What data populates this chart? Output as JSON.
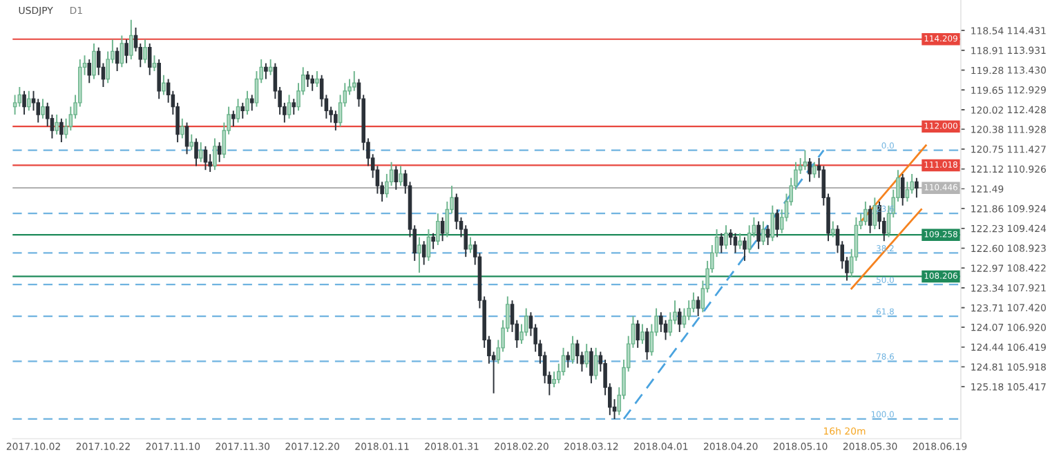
{
  "chart_data": {
    "type": "candlestick",
    "title": "USDJPY",
    "annotations": [
      "D1",
      "16h 20m",
      {
        "text": "0.0",
        "y": 111.4
      },
      {
        "text": "23.6",
        "y": 109.8
      },
      {
        "text": "38.2",
        "y": 108.8
      },
      {
        "text": "50.0",
        "y": 108.0
      },
      {
        "text": "61.8",
        "y": 107.2
      },
      {
        "text": "78.6",
        "y": 106.06
      },
      {
        "text": "100.0",
        "y": 104.6
      }
    ],
    "categories": [
      null,
      null,
      null,
      null,
      "2017.10.02",
      null,
      null,
      null,
      null,
      null,
      null,
      null,
      null,
      null,
      null,
      null,
      null,
      null,
      null,
      "2017.10.22",
      null,
      null,
      null,
      null,
      null,
      null,
      null,
      null,
      null,
      null,
      null,
      null,
      null,
      null,
      "2017.11.10",
      null,
      null,
      null,
      null,
      null,
      null,
      null,
      null,
      null,
      null,
      null,
      null,
      null,
      null,
      "2017.11.30",
      null,
      null,
      null,
      null,
      null,
      null,
      null,
      null,
      null,
      null,
      null,
      null,
      null,
      null,
      "2017.12.20",
      null,
      null,
      null,
      null,
      null,
      null,
      null,
      null,
      null,
      null,
      null,
      null,
      null,
      null,
      "2018.01.11",
      null,
      null,
      null,
      null,
      null,
      null,
      null,
      null,
      null,
      null,
      null,
      null,
      null,
      null,
      "2018.01.31",
      null,
      null,
      null,
      null,
      null,
      null,
      null,
      null,
      null,
      null,
      null,
      null,
      null,
      null,
      "2018.02.20",
      null,
      null,
      null,
      null,
      null,
      null,
      null,
      null,
      null,
      null,
      null,
      null,
      null,
      null,
      "2018.03.12",
      null,
      null,
      null,
      null,
      null,
      null,
      null,
      null,
      null,
      null,
      null,
      null,
      null,
      null,
      "2018.04.01",
      null,
      null,
      null,
      null,
      null,
      null,
      null,
      null,
      null,
      null,
      null,
      null,
      null,
      null,
      "2018.04.20",
      null,
      null,
      null,
      null,
      null,
      null,
      null,
      null,
      null,
      null,
      null,
      null,
      null,
      null,
      "2018.05.10",
      null,
      null,
      null,
      null,
      null,
      null,
      null,
      null,
      null,
      null,
      null,
      null,
      null,
      null,
      "2018.05.30",
      null,
      null,
      null,
      null,
      null,
      null,
      null,
      null,
      null,
      null,
      null,
      null,
      null,
      null,
      "2018.06.19",
      null,
      null,
      null,
      null
    ],
    "ohlc": [
      [
        112.5,
        112.8,
        112.3,
        112.6
      ],
      [
        112.6,
        113.0,
        112.5,
        112.8
      ],
      [
        112.8,
        112.9,
        112.3,
        112.5
      ],
      [
        112.5,
        112.9,
        112.4,
        112.7
      ],
      [
        112.7,
        112.9,
        112.4,
        112.6
      ],
      [
        112.6,
        112.7,
        112.1,
        112.3
      ],
      [
        112.3,
        112.7,
        112.2,
        112.5
      ],
      [
        112.5,
        112.6,
        112.0,
        112.2
      ],
      [
        112.2,
        112.3,
        111.7,
        111.9
      ],
      [
        111.9,
        112.3,
        111.8,
        112.1
      ],
      [
        112.1,
        112.2,
        111.6,
        111.8
      ],
      [
        111.8,
        112.2,
        111.7,
        112.0
      ],
      [
        112.0,
        112.5,
        111.9,
        112.3
      ],
      [
        112.3,
        112.8,
        112.2,
        112.6
      ],
      [
        112.6,
        113.7,
        112.5,
        113.5
      ],
      [
        113.5,
        113.8,
        113.3,
        113.6
      ],
      [
        113.6,
        113.7,
        113.1,
        113.3
      ],
      [
        113.3,
        114.1,
        113.2,
        113.9
      ],
      [
        113.9,
        114.0,
        113.3,
        113.5
      ],
      [
        113.5,
        113.6,
        113.0,
        113.2
      ],
      [
        113.2,
        113.9,
        113.1,
        113.7
      ],
      [
        113.7,
        114.2,
        113.6,
        113.9
      ],
      [
        113.9,
        114.0,
        113.4,
        113.6
      ],
      [
        113.6,
        114.3,
        113.5,
        114.1
      ],
      [
        114.1,
        114.2,
        113.6,
        113.8
      ],
      [
        113.8,
        114.7,
        113.7,
        114.3
      ],
      [
        114.3,
        114.5,
        113.9,
        114.0
      ],
      [
        114.0,
        114.1,
        113.5,
        113.7
      ],
      [
        113.7,
        114.2,
        113.6,
        114.0
      ],
      [
        114.0,
        114.1,
        113.3,
        113.5
      ],
      [
        113.5,
        113.8,
        113.4,
        113.6
      ],
      [
        113.6,
        113.7,
        112.7,
        112.9
      ],
      [
        112.9,
        113.3,
        112.8,
        113.1
      ],
      [
        113.1,
        113.2,
        112.6,
        112.8
      ],
      [
        112.8,
        112.9,
        112.3,
        112.5
      ],
      [
        112.5,
        112.6,
        111.6,
        111.8
      ],
      [
        111.8,
        112.2,
        111.7,
        112.0
      ],
      [
        112.0,
        112.1,
        111.3,
        111.5
      ],
      [
        111.5,
        111.8,
        111.4,
        111.6
      ],
      [
        111.6,
        111.7,
        111.0,
        111.2
      ],
      [
        111.2,
        111.6,
        111.1,
        111.4
      ],
      [
        111.4,
        111.5,
        110.9,
        111.1
      ],
      [
        111.1,
        111.3,
        110.85,
        111.0
      ],
      [
        111.0,
        111.7,
        110.9,
        111.5
      ],
      [
        111.5,
        111.6,
        111.1,
        111.3
      ],
      [
        111.3,
        112.1,
        111.2,
        111.9
      ],
      [
        111.9,
        112.5,
        111.8,
        112.3
      ],
      [
        112.3,
        112.4,
        112.0,
        112.2
      ],
      [
        112.2,
        112.7,
        112.1,
        112.5
      ],
      [
        112.5,
        112.6,
        112.2,
        112.4
      ],
      [
        112.4,
        112.9,
        112.3,
        112.7
      ],
      [
        112.7,
        112.8,
        112.4,
        112.6
      ],
      [
        112.6,
        113.4,
        112.5,
        113.2
      ],
      [
        113.2,
        113.7,
        113.1,
        113.5
      ],
      [
        113.5,
        113.6,
        113.2,
        113.4
      ],
      [
        113.4,
        113.7,
        113.3,
        113.5
      ],
      [
        113.5,
        113.6,
        112.7,
        112.9
      ],
      [
        112.9,
        113.0,
        112.3,
        112.5
      ],
      [
        112.5,
        112.6,
        112.1,
        112.3
      ],
      [
        112.3,
        112.8,
        112.2,
        112.6
      ],
      [
        112.6,
        112.7,
        112.3,
        112.5
      ],
      [
        112.5,
        113.1,
        112.4,
        112.9
      ],
      [
        112.9,
        113.5,
        112.8,
        113.3
      ],
      [
        113.3,
        113.4,
        113.0,
        113.2
      ],
      [
        113.2,
        113.3,
        112.9,
        113.1
      ],
      [
        113.1,
        113.4,
        113.0,
        113.2
      ],
      [
        113.2,
        113.3,
        112.5,
        112.7
      ],
      [
        112.7,
        112.8,
        112.2,
        112.4
      ],
      [
        112.4,
        112.5,
        112.1,
        112.3
      ],
      [
        112.3,
        112.4,
        111.9,
        112.1
      ],
      [
        112.1,
        112.8,
        112.0,
        112.6
      ],
      [
        112.6,
        113.1,
        112.5,
        112.9
      ],
      [
        112.9,
        113.2,
        112.8,
        113.0
      ],
      [
        113.0,
        113.4,
        112.9,
        113.1
      ],
      [
        113.1,
        113.2,
        112.5,
        112.7
      ],
      [
        112.7,
        112.8,
        111.4,
        111.6
      ],
      [
        111.6,
        111.7,
        111.0,
        111.2
      ],
      [
        111.2,
        111.3,
        110.7,
        110.9
      ],
      [
        110.9,
        111.0,
        110.3,
        110.5
      ],
      [
        110.5,
        110.6,
        110.1,
        110.3
      ],
      [
        110.3,
        110.8,
        110.2,
        110.6
      ],
      [
        110.6,
        111.1,
        110.5,
        110.9
      ],
      [
        110.9,
        111.0,
        110.4,
        110.6
      ],
      [
        110.6,
        111.0,
        110.5,
        110.8
      ],
      [
        110.8,
        110.9,
        110.3,
        110.5
      ],
      [
        110.5,
        110.6,
        109.2,
        109.4
      ],
      [
        109.4,
        109.5,
        108.6,
        108.8
      ],
      [
        108.8,
        109.2,
        108.3,
        109.0
      ],
      [
        109.0,
        109.1,
        108.5,
        108.7
      ],
      [
        108.7,
        109.4,
        108.6,
        109.2
      ],
      [
        109.2,
        109.3,
        108.9,
        109.1
      ],
      [
        109.1,
        109.8,
        109.0,
        109.6
      ],
      [
        109.6,
        109.7,
        109.1,
        109.3
      ],
      [
        109.3,
        110.1,
        109.2,
        109.9
      ],
      [
        109.9,
        110.5,
        109.8,
        110.2
      ],
      [
        110.2,
        110.3,
        109.4,
        109.6
      ],
      [
        109.6,
        109.7,
        109.2,
        109.4
      ],
      [
        109.4,
        109.5,
        108.7,
        108.9
      ],
      [
        108.9,
        109.2,
        108.8,
        109.0
      ],
      [
        109.0,
        109.1,
        108.5,
        108.7
      ],
      [
        108.7,
        108.8,
        107.4,
        107.6
      ],
      [
        107.6,
        107.7,
        106.4,
        106.6
      ],
      [
        106.6,
        106.7,
        106.0,
        106.2
      ],
      [
        106.2,
        106.3,
        105.25,
        106.1
      ],
      [
        106.1,
        106.6,
        106.0,
        106.4
      ],
      [
        106.4,
        107.1,
        106.3,
        106.9
      ],
      [
        106.9,
        107.7,
        106.8,
        107.5
      ],
      [
        107.5,
        107.6,
        106.8,
        107.0
      ],
      [
        107.0,
        107.1,
        106.4,
        106.6
      ],
      [
        106.6,
        107.0,
        106.5,
        106.8
      ],
      [
        106.8,
        107.4,
        106.7,
        107.2
      ],
      [
        107.2,
        107.3,
        106.7,
        106.9
      ],
      [
        106.9,
        107.0,
        106.3,
        106.5
      ],
      [
        106.5,
        106.6,
        106.0,
        106.2
      ],
      [
        106.2,
        106.3,
        105.5,
        105.7
      ],
      [
        105.7,
        105.8,
        105.2,
        105.5
      ],
      [
        105.5,
        105.8,
        105.4,
        105.6
      ],
      [
        105.6,
        106.0,
        105.5,
        105.8
      ],
      [
        105.8,
        106.4,
        105.7,
        106.2
      ],
      [
        106.2,
        106.3,
        105.9,
        106.1
      ],
      [
        106.1,
        106.7,
        106.0,
        106.5
      ],
      [
        106.5,
        106.6,
        106.0,
        106.2
      ],
      [
        106.2,
        106.3,
        105.8,
        106.0
      ],
      [
        106.0,
        106.5,
        105.9,
        106.3
      ],
      [
        106.3,
        106.4,
        105.5,
        105.7
      ],
      [
        105.7,
        106.4,
        105.6,
        106.2
      ],
      [
        106.2,
        106.3,
        105.8,
        106.0
      ],
      [
        106.0,
        106.1,
        105.2,
        105.4
      ],
      [
        105.4,
        105.5,
        104.7,
        104.9
      ],
      [
        104.9,
        105.1,
        104.6,
        104.8
      ],
      [
        104.8,
        105.4,
        104.7,
        105.2
      ],
      [
        105.2,
        106.1,
        105.1,
        105.9
      ],
      [
        105.9,
        106.7,
        105.8,
        106.5
      ],
      [
        106.5,
        107.2,
        106.4,
        107.0
      ],
      [
        107.0,
        107.1,
        106.4,
        106.6
      ],
      [
        106.6,
        107.0,
        106.5,
        106.8
      ],
      [
        106.8,
        106.9,
        106.1,
        106.3
      ],
      [
        106.3,
        107.0,
        106.2,
        106.8
      ],
      [
        106.8,
        107.4,
        106.7,
        107.2
      ],
      [
        107.2,
        107.3,
        106.8,
        107.0
      ],
      [
        107.0,
        107.1,
        106.6,
        106.8
      ],
      [
        106.8,
        107.3,
        106.7,
        107.1
      ],
      [
        107.1,
        107.6,
        107.0,
        107.3
      ],
      [
        107.3,
        107.4,
        106.8,
        107.0
      ],
      [
        107.0,
        107.4,
        106.9,
        107.2
      ],
      [
        107.2,
        107.6,
        107.1,
        107.4
      ],
      [
        107.4,
        107.8,
        107.3,
        107.6
      ],
      [
        107.6,
        107.7,
        107.2,
        107.4
      ],
      [
        107.4,
        108.1,
        107.3,
        107.9
      ],
      [
        107.9,
        108.6,
        107.8,
        108.4
      ],
      [
        108.4,
        109.0,
        108.3,
        108.8
      ],
      [
        108.8,
        109.4,
        108.7,
        109.2
      ],
      [
        109.2,
        109.3,
        108.8,
        109.0
      ],
      [
        109.0,
        109.5,
        108.9,
        109.3
      ],
      [
        109.3,
        109.4,
        109.0,
        109.2
      ],
      [
        109.2,
        109.3,
        108.8,
        109.0
      ],
      [
        109.0,
        109.3,
        108.9,
        109.1
      ],
      [
        109.1,
        109.2,
        108.6,
        108.9
      ],
      [
        108.9,
        109.5,
        108.8,
        109.3
      ],
      [
        109.3,
        109.7,
        109.2,
        109.5
      ],
      [
        109.5,
        109.6,
        108.9,
        109.1
      ],
      [
        109.1,
        109.6,
        109.0,
        109.4
      ],
      [
        109.4,
        109.5,
        109.0,
        109.2
      ],
      [
        109.2,
        110.0,
        109.1,
        109.8
      ],
      [
        109.8,
        109.9,
        109.2,
        109.4
      ],
      [
        109.4,
        109.9,
        109.3,
        109.7
      ],
      [
        109.7,
        110.3,
        109.6,
        110.1
      ],
      [
        110.1,
        110.7,
        110.0,
        110.5
      ],
      [
        110.5,
        111.1,
        110.4,
        110.9
      ],
      [
        110.9,
        111.2,
        110.8,
        111.0
      ],
      [
        111.0,
        111.4,
        110.9,
        111.1
      ],
      [
        111.1,
        111.2,
        110.6,
        110.8
      ],
      [
        110.8,
        111.1,
        110.7,
        111.0
      ],
      [
        111.0,
        111.2,
        110.7,
        110.9
      ],
      [
        110.9,
        111.0,
        110.0,
        110.2
      ],
      [
        110.2,
        110.3,
        109.1,
        109.3
      ],
      [
        109.3,
        109.6,
        109.2,
        109.4
      ],
      [
        109.4,
        109.5,
        108.8,
        109.0
      ],
      [
        109.0,
        109.1,
        108.4,
        108.6
      ],
      [
        108.6,
        108.7,
        108.1,
        108.3
      ],
      [
        108.3,
        108.9,
        108.2,
        108.7
      ],
      [
        108.7,
        109.7,
        108.6,
        109.5
      ],
      [
        109.5,
        109.8,
        109.4,
        109.6
      ],
      [
        109.6,
        110.1,
        109.5,
        109.9
      ],
      [
        109.9,
        110.0,
        109.3,
        109.5
      ],
      [
        109.5,
        110.2,
        109.4,
        110.0
      ],
      [
        110.0,
        110.1,
        109.4,
        109.6
      ],
      [
        109.6,
        109.7,
        109.1,
        109.3
      ],
      [
        109.3,
        110.0,
        109.2,
        109.8
      ],
      [
        109.8,
        110.4,
        109.7,
        110.2
      ],
      [
        110.2,
        110.9,
        110.1,
        110.7
      ],
      [
        110.7,
        110.8,
        110.0,
        110.2
      ],
      [
        110.2,
        110.6,
        110.1,
        110.4
      ],
      [
        110.4,
        110.8,
        110.3,
        110.6
      ],
      [
        110.6,
        110.7,
        110.2,
        110.446
      ],
      null,
      null,
      null,
      null,
      null,
      null,
      null,
      null,
      null
    ],
    "series": [
      {
        "type": "line",
        "color": "#4aa3df",
        "line_style": "dashed",
        "values": [
          null,
          null,
          null,
          null,
          null,
          null,
          null,
          null,
          null,
          null,
          null,
          null,
          null,
          null,
          null,
          null,
          null,
          null,
          null,
          null,
          null,
          null,
          null,
          null,
          null,
          null,
          null,
          null,
          null,
          null,
          null,
          null,
          null,
          null,
          null,
          null,
          null,
          null,
          null,
          null,
          null,
          null,
          null,
          null,
          null,
          null,
          null,
          null,
          null,
          null,
          null,
          null,
          null,
          null,
          null,
          null,
          null,
          null,
          null,
          null,
          null,
          null,
          null,
          null,
          null,
          null,
          null,
          null,
          null,
          null,
          null,
          null,
          null,
          null,
          null,
          null,
          null,
          null,
          null,
          null,
          null,
          null,
          null,
          null,
          null,
          null,
          null,
          null,
          null,
          null,
          null,
          null,
          null,
          null,
          null,
          null,
          null,
          null,
          null,
          null,
          null,
          null,
          null,
          null,
          null,
          null,
          null,
          null,
          null,
          null,
          null,
          null,
          null,
          null,
          null,
          null,
          null,
          null,
          null,
          null,
          null,
          null,
          null,
          null,
          null,
          null,
          null,
          null,
          null,
          null,
          null,
          104.6,
          null,
          null,
          null,
          null,
          null,
          null,
          null,
          null,
          null,
          null,
          null,
          null,
          null,
          null,
          null,
          null,
          null,
          null,
          null,
          null,
          null,
          null,
          null,
          null,
          null,
          null,
          null,
          null,
          null,
          null,
          null,
          null,
          null,
          null,
          null,
          null,
          null,
          null,
          null,
          null,
          null,
          null,
          111.4,
          null,
          null,
          null,
          null,
          null,
          null,
          null,
          null,
          null,
          null,
          null,
          null,
          null,
          null,
          null,
          null,
          null,
          null,
          null,
          null,
          null,
          null,
          null,
          null,
          null,
          null,
          null,
          null,
          null
        ]
      },
      {
        "type": "line",
        "color": "#f5821f",
        "line_style": "solid",
        "values": [
          null,
          null,
          null,
          null,
          null,
          null,
          null,
          null,
          null,
          null,
          null,
          null,
          null,
          null,
          null,
          null,
          null,
          null,
          null,
          null,
          null,
          null,
          null,
          null,
          null,
          null,
          null,
          null,
          null,
          null,
          null,
          null,
          null,
          null,
          null,
          null,
          null,
          null,
          null,
          null,
          null,
          null,
          null,
          null,
          null,
          null,
          null,
          null,
          null,
          null,
          null,
          null,
          null,
          null,
          null,
          null,
          null,
          null,
          null,
          null,
          null,
          null,
          null,
          null,
          null,
          null,
          null,
          null,
          null,
          null,
          null,
          null,
          null,
          null,
          null,
          null,
          null,
          null,
          null,
          null,
          null,
          null,
          null,
          null,
          null,
          null,
          null,
          null,
          null,
          null,
          null,
          null,
          null,
          null,
          null,
          null,
          null,
          null,
          null,
          null,
          null,
          null,
          null,
          null,
          null,
          null,
          null,
          null,
          null,
          null,
          null,
          null,
          null,
          null,
          null,
          null,
          null,
          null,
          null,
          null,
          null,
          null,
          null,
          null,
          null,
          null,
          null,
          null,
          null,
          null,
          null,
          null,
          null,
          null,
          null,
          null,
          null,
          null,
          null,
          null,
          null,
          null,
          null,
          null,
          null,
          null,
          null,
          null,
          null,
          null,
          null,
          null,
          null,
          null,
          null,
          null,
          null,
          null,
          null,
          null,
          null,
          null,
          null,
          null,
          null,
          null,
          null,
          null,
          null,
          null,
          null,
          null,
          null,
          null,
          null,
          null,
          null,
          null,
          null,
          null,
          null,
          null,
          109.59,
          null,
          null,
          null,
          null,
          null,
          null,
          null,
          null,
          null,
          null,
          null,
          null,
          null,
          111.52,
          null,
          null,
          null,
          null,
          null,
          null,
          null
        ]
      },
      {
        "type": "line",
        "color": "#f5821f",
        "line_style": "solid",
        "values": [
          null,
          null,
          null,
          null,
          null,
          null,
          null,
          null,
          null,
          null,
          null,
          null,
          null,
          null,
          null,
          null,
          null,
          null,
          null,
          null,
          null,
          null,
          null,
          null,
          null,
          null,
          null,
          null,
          null,
          null,
          null,
          null,
          null,
          null,
          null,
          null,
          null,
          null,
          null,
          null,
          null,
          null,
          null,
          null,
          null,
          null,
          null,
          null,
          null,
          null,
          null,
          null,
          null,
          null,
          null,
          null,
          null,
          null,
          null,
          null,
          null,
          null,
          null,
          null,
          null,
          null,
          null,
          null,
          null,
          null,
          null,
          null,
          null,
          null,
          null,
          null,
          null,
          null,
          null,
          null,
          null,
          null,
          null,
          null,
          null,
          null,
          null,
          null,
          null,
          null,
          null,
          null,
          null,
          null,
          null,
          null,
          null,
          null,
          null,
          null,
          null,
          null,
          null,
          null,
          null,
          null,
          null,
          null,
          null,
          null,
          null,
          null,
          null,
          null,
          null,
          null,
          null,
          null,
          null,
          null,
          null,
          null,
          null,
          null,
          null,
          null,
          null,
          null,
          null,
          null,
          null,
          null,
          null,
          null,
          null,
          null,
          null,
          null,
          null,
          null,
          null,
          null,
          null,
          null,
          null,
          null,
          null,
          null,
          null,
          null,
          null,
          null,
          null,
          null,
          null,
          null,
          null,
          null,
          null,
          null,
          null,
          null,
          null,
          null,
          null,
          null,
          null,
          null,
          null,
          null,
          null,
          null,
          null,
          null,
          null,
          null,
          null,
          null,
          null,
          null,
          107.9,
          null,
          null,
          null,
          null,
          null,
          null,
          null,
          null,
          null,
          null,
          null,
          null,
          null,
          null,
          109.9,
          null,
          null,
          null,
          null,
          null,
          null,
          null,
          null
        ]
      }
    ],
    "ref_lines": [
      {
        "axis": "y",
        "value": 114.209,
        "label": "114.209",
        "color": "#e8453c",
        "line_style": "solid"
      },
      {
        "axis": "y",
        "value": 112.0,
        "label": "112.000",
        "color": "#e8453c",
        "line_style": "solid"
      },
      {
        "axis": "y",
        "value": 111.018,
        "label": "111.018",
        "color": "#e8453c",
        "line_style": "solid"
      },
      {
        "axis": "y",
        "value": 110.446,
        "label": "110.446",
        "color": "#b5b5b5",
        "line_style": "solid"
      },
      {
        "axis": "y",
        "value": 109.258,
        "label": "109.258",
        "color": "#1e8a5a",
        "line_style": "solid"
      },
      {
        "axis": "y",
        "value": 108.206,
        "label": "108.206",
        "color": "#1e8a5a",
        "line_style": "solid"
      },
      {
        "axis": "y",
        "value": 111.4,
        "color": "#6fb3e0",
        "line_style": "dashed"
      },
      {
        "axis": "y",
        "value": 109.8,
        "color": "#6fb3e0",
        "line_style": "dashed"
      },
      {
        "axis": "y",
        "value": 108.8,
        "color": "#6fb3e0",
        "line_style": "dashed"
      },
      {
        "axis": "y",
        "value": 108.0,
        "color": "#6fb3e0",
        "line_style": "dashed"
      },
      {
        "axis": "y",
        "value": 107.2,
        "color": "#6fb3e0",
        "line_style": "dashed"
      },
      {
        "axis": "y",
        "value": 106.06,
        "color": "#6fb3e0",
        "line_style": "dashed"
      },
      {
        "axis": "y",
        "value": 104.6,
        "color": "#6fb3e0",
        "line_style": "dashed"
      }
    ],
    "ylim": [
      104.1,
      115.2
    ],
    "yticks": [
      114.431,
      113.931,
      "113.430",
      112.929,
      112.428,
      111.928,
      111.427,
      110.926,
      109.924,
      109.424,
      108.923,
      108.422,
      107.921,
      "107.420",
      "106.920",
      106.419,
      105.918,
      105.417
    ],
    "y2lim": [
      126.15,
      117.97
    ],
    "y2ticks": [
      118.54,
      118.91,
      119.28,
      119.65,
      120.02,
      120.38,
      120.75,
      121.12,
      121.49,
      121.86,
      122.23,
      "122.60",
      122.97,
      123.34,
      123.71,
      124.07,
      124.44,
      124.81,
      125.18
    ]
  }
}
